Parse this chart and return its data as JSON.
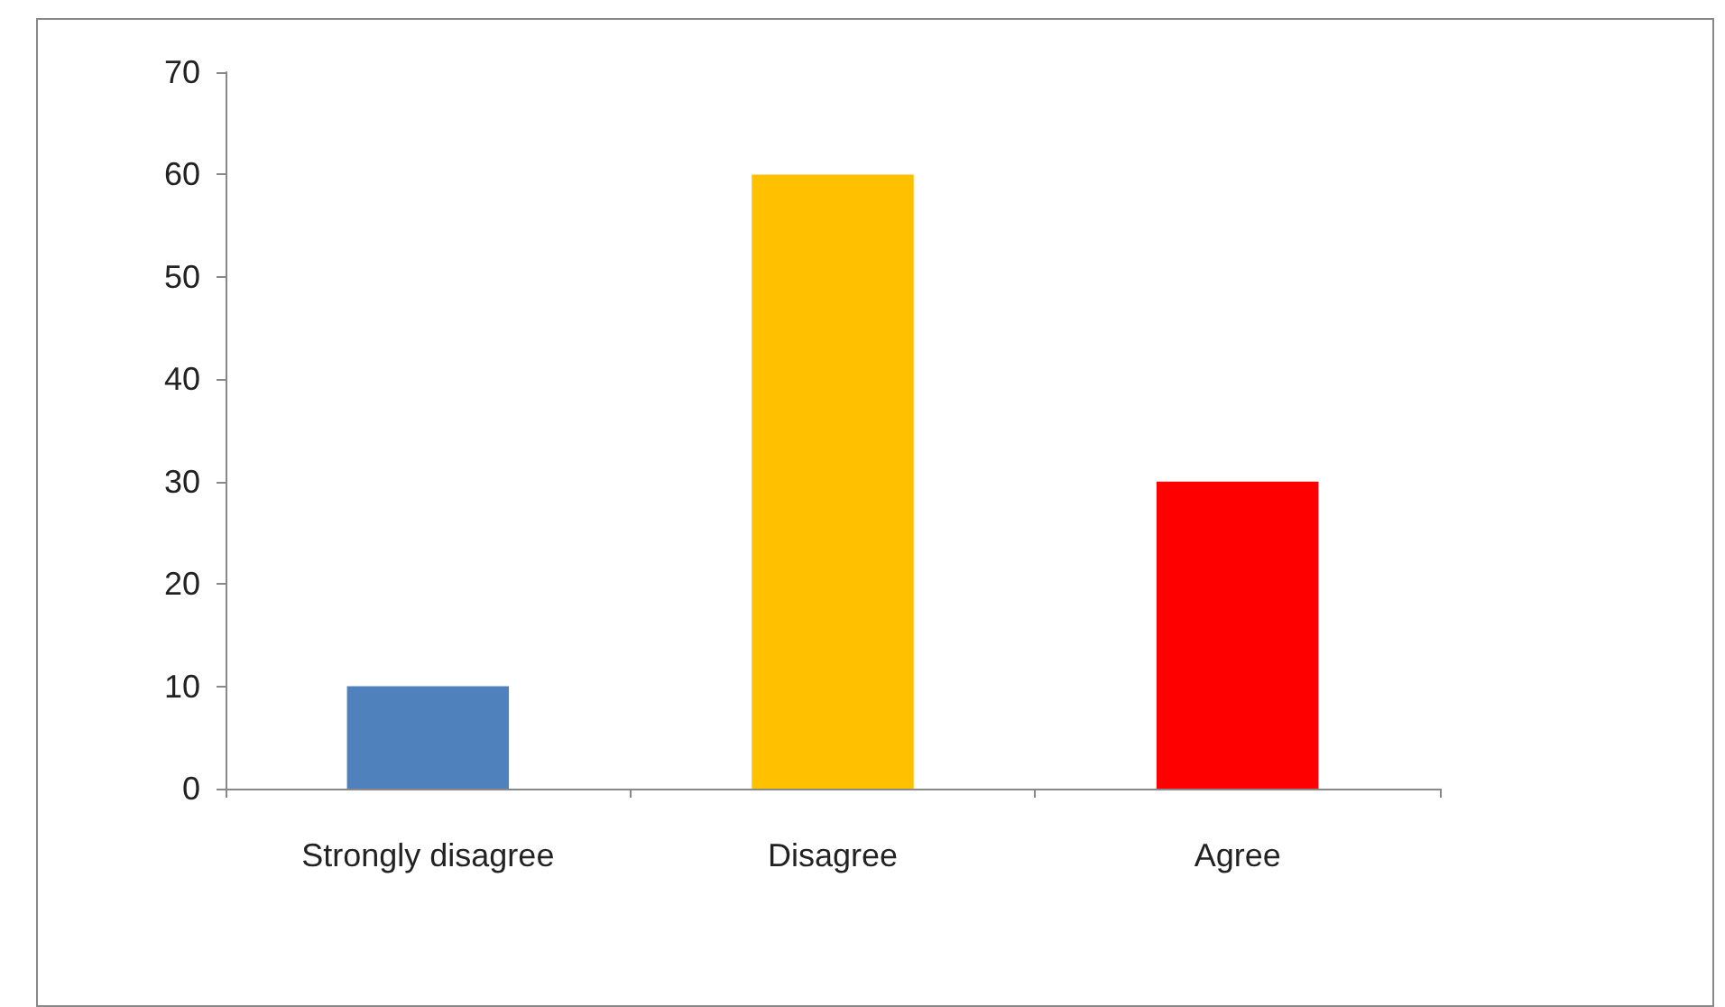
{
  "chart_data": {
    "type": "bar",
    "categories": [
      "Strongly disagree",
      "Disagree",
      "Agree"
    ],
    "values": [
      10,
      60,
      30
    ],
    "colors": [
      "#4f81bd",
      "#ffc000",
      "#ff0000"
    ],
    "ylim": [
      0,
      70
    ],
    "yticks": [
      0,
      10,
      20,
      30,
      40,
      50,
      60,
      70
    ],
    "grid": false
  }
}
